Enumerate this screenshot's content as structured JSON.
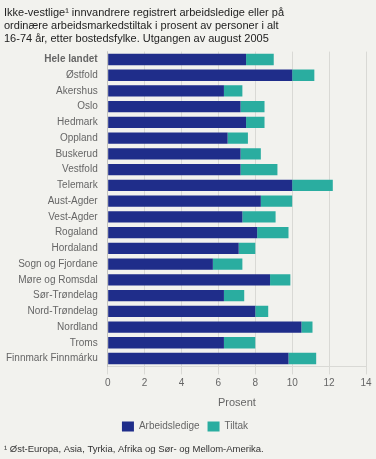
{
  "chart_data": {
    "type": "bar",
    "orientation": "horizontal",
    "stacked": true,
    "title": "Ikke-vestlige¹ innvandrere registrert arbeidsledige eller på\nordinære arbeidsmarkedstiltak i prosent av personer i alt\n16-74 år, etter bostedsfylke. Utgangen av august 2005",
    "categories": [
      "Hele landet",
      "Østfold",
      "Akershus",
      "Oslo",
      "Hedmark",
      "Oppland",
      "Buskerud",
      "Vestfold",
      "Telemark",
      "Aust-Agder",
      "Vest-Agder",
      "Rogaland",
      "Hordaland",
      "Sogn og Fjordane",
      "Møre og Romsdal",
      "Sør-Trøndelag",
      "Nord-Trøndelag",
      "Nordland",
      "Troms",
      "Finnmark Finnmárku"
    ],
    "series": [
      {
        "name": "Arbeidsledige",
        "color": "#1f2d8a",
        "values": [
          7.5,
          10.0,
          6.3,
          7.2,
          7.5,
          6.5,
          7.2,
          7.2,
          10.0,
          8.3,
          7.3,
          8.1,
          7.1,
          5.7,
          8.8,
          6.3,
          8.0,
          10.5,
          6.3,
          9.8
        ]
      },
      {
        "name": "Tiltak",
        "color": "#2aada0",
        "values": [
          1.5,
          1.2,
          1.0,
          1.3,
          1.0,
          1.1,
          1.1,
          2.0,
          2.2,
          1.7,
          1.8,
          1.7,
          0.9,
          1.6,
          1.1,
          1.1,
          0.7,
          0.6,
          1.7,
          1.5
        ]
      }
    ],
    "xlabel": "Prosent",
    "xlim": [
      0,
      14
    ],
    "xticks": [
      0,
      2,
      4,
      6,
      8,
      10,
      12,
      14
    ],
    "grid": true,
    "legend": "bottom",
    "annotations": [
      "¹ Øst-Europa, Asia, Tyrkia, Afrika og Sør- og Mellom-Amerika."
    ]
  }
}
